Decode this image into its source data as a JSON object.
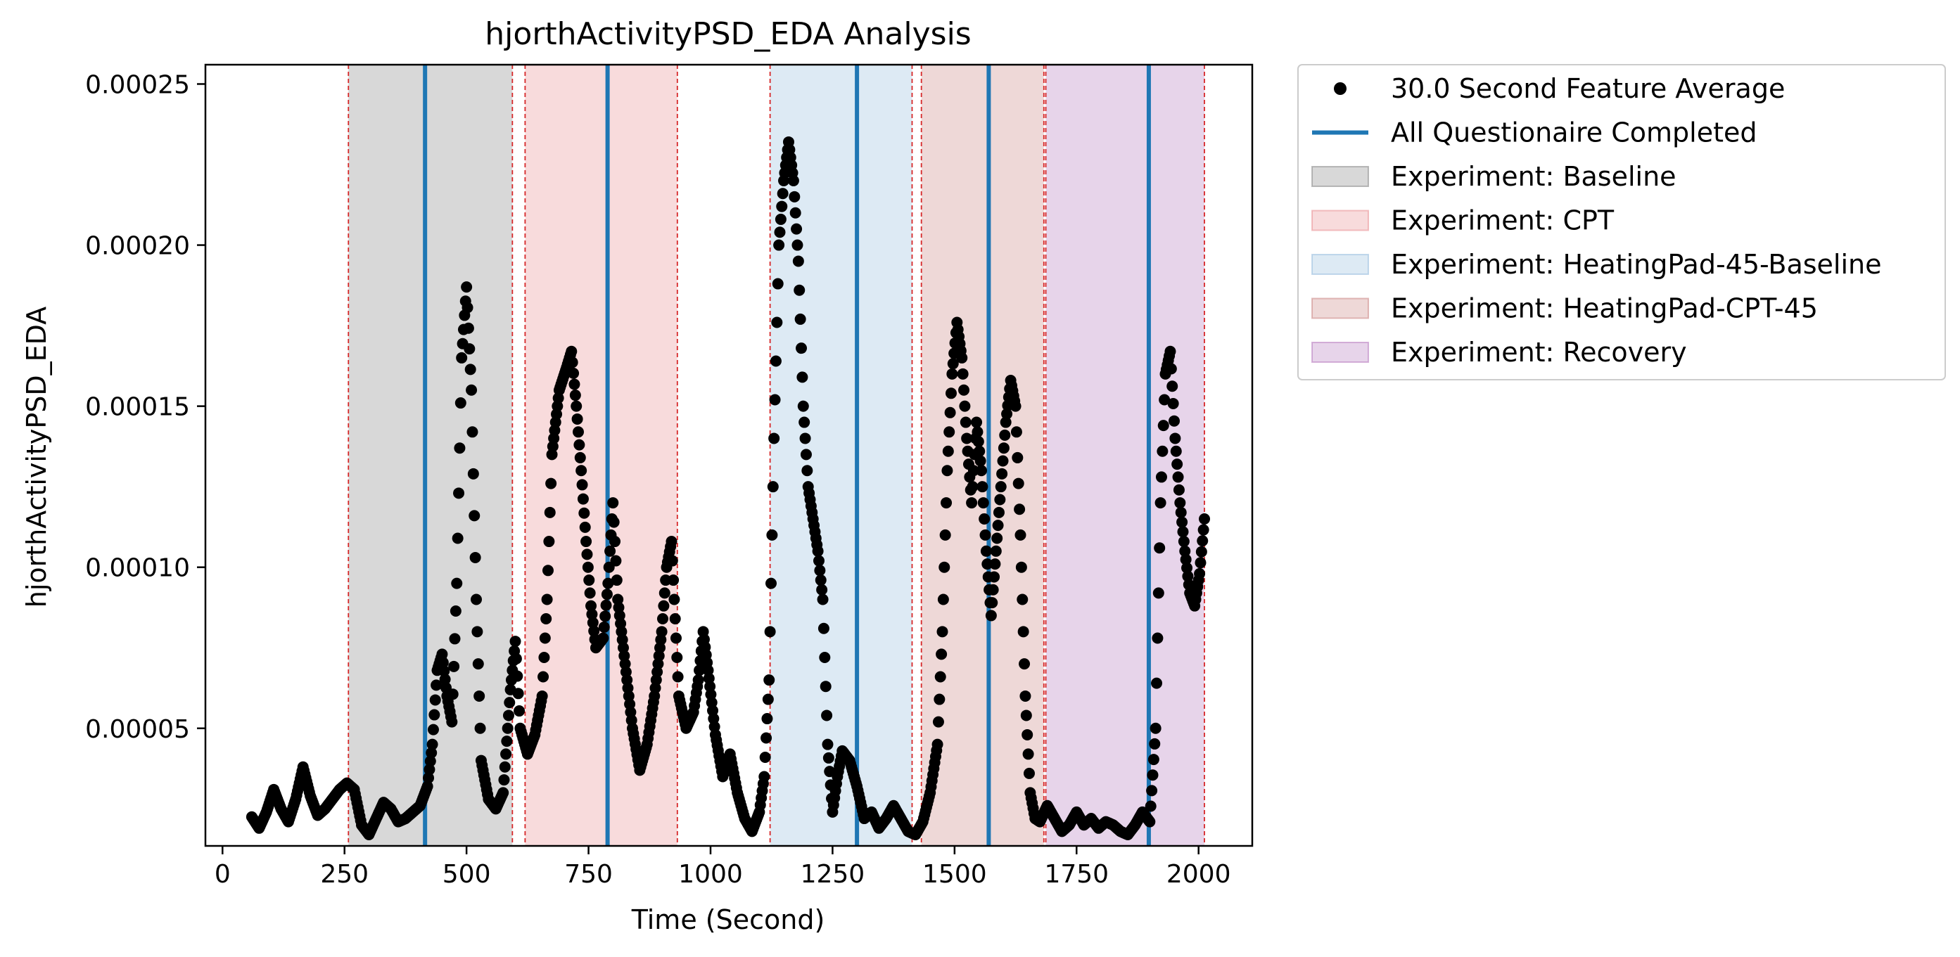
{
  "chart_data": {
    "type": "scatter",
    "title": "hjorthActivityPSD_EDA Analysis",
    "xlabel": "Time (Second)",
    "ylabel": "hjorthActivityPSD_EDA",
    "xlim": [
      -35,
      2110
    ],
    "ylim": [
      1.35e-05,
      0.000256
    ],
    "x_ticks": [
      0,
      250,
      500,
      750,
      1000,
      1250,
      1500,
      1750,
      2000
    ],
    "x_tick_labels": [
      "0",
      "250",
      "500",
      "750",
      "1000",
      "1250",
      "1500",
      "1750",
      "2000"
    ],
    "y_ticks": [
      5e-05,
      0.0001,
      0.00015,
      0.0002,
      0.00025
    ],
    "y_tick_labels": [
      "0.00005",
      "0.00010",
      "0.00015",
      "0.00020",
      "0.00025"
    ],
    "grid": false,
    "legend_position": "outside-right",
    "legend": [
      {
        "label": "30.0 Second Feature Average",
        "kind": "marker",
        "color": "#000000"
      },
      {
        "label": "All Questionaire Completed",
        "kind": "line",
        "color": "#1f77b4"
      },
      {
        "label": "Experiment: Baseline",
        "kind": "patch",
        "color": "#7f7f7f"
      },
      {
        "label": "Experiment: CPT",
        "kind": "patch",
        "color": "#e8878c"
      },
      {
        "label": "Experiment: HeatingPad-45-Baseline",
        "kind": "patch",
        "color": "#90b8dc"
      },
      {
        "label": "Experiment: HeatingPad-CPT-45",
        "kind": "patch",
        "color": "#c77e7c"
      },
      {
        "label": "Experiment: Recovery",
        "kind": "patch",
        "color": "#b16fb9"
      }
    ],
    "experiment_spans": [
      {
        "name": "Experiment: Baseline",
        "start": 258,
        "end": 594,
        "color": "#7f7f7f"
      },
      {
        "name": "Experiment: CPT",
        "start": 620,
        "end": 932,
        "color": "#e8878c"
      },
      {
        "name": "Experiment: HeatingPad-45-Baseline",
        "start": 1122,
        "end": 1413,
        "color": "#90b8dc"
      },
      {
        "name": "Experiment: HeatingPad-CPT-45",
        "start": 1432,
        "end": 1683,
        "color": "#c77e7c"
      },
      {
        "name": "Experiment: Recovery",
        "start": 1687,
        "end": 2012,
        "color": "#b16fb9"
      }
    ],
    "questionnaire_completed_x": [
      415,
      789,
      1300,
      1570,
      1898
    ],
    "series": [
      {
        "name": "30.0 Second Feature Average",
        "type": "scatter",
        "points": [
          [
            60,
            2.25e-05
          ],
          [
            75,
            1.9e-05
          ],
          [
            90,
            2.4e-05
          ],
          [
            105,
            3.1e-05
          ],
          [
            120,
            2.5e-05
          ],
          [
            135,
            2.1e-05
          ],
          [
            150,
            2.8e-05
          ],
          [
            165,
            3.8e-05
          ],
          [
            180,
            2.9e-05
          ],
          [
            195,
            2.3e-05
          ],
          [
            210,
            2.5e-05
          ],
          [
            225,
            2.8e-05
          ],
          [
            240,
            3.1e-05
          ],
          [
            255,
            3.3e-05
          ],
          [
            270,
            3.1e-05
          ],
          [
            285,
            2e-05
          ],
          [
            300,
            1.7e-05
          ],
          [
            315,
            2.2e-05
          ],
          [
            330,
            2.7e-05
          ],
          [
            345,
            2.5e-05
          ],
          [
            360,
            2.1e-05
          ],
          [
            375,
            2.2e-05
          ],
          [
            390,
            2.4e-05
          ],
          [
            405,
            2.6e-05
          ],
          [
            420,
            3.2e-05
          ],
          [
            430,
            4.5e-05
          ],
          [
            440,
            6.8e-05
          ],
          [
            450,
            7.3e-05
          ],
          [
            460,
            6e-05
          ],
          [
            470,
            5.2e-05
          ],
          [
            480,
            9.5e-05
          ],
          [
            490,
            0.000165
          ],
          [
            500,
            0.000187
          ],
          [
            510,
            0.000155
          ],
          [
            520,
            9e-05
          ],
          [
            530,
            4e-05
          ],
          [
            545,
            2.8e-05
          ],
          [
            560,
            2.5e-05
          ],
          [
            575,
            3e-05
          ],
          [
            590,
            6.2e-05
          ],
          [
            600,
            7.7e-05
          ],
          [
            610,
            5e-05
          ],
          [
            625,
            4.2e-05
          ],
          [
            640,
            4.8e-05
          ],
          [
            655,
            6e-05
          ],
          [
            665,
            9e-05
          ],
          [
            675,
            0.000135
          ],
          [
            690,
            0.000155
          ],
          [
            705,
            0.000162
          ],
          [
            715,
            0.000167
          ],
          [
            725,
            0.00015
          ],
          [
            735,
            0.00013
          ],
          [
            745,
            0.000108
          ],
          [
            755,
            8.8e-05
          ],
          [
            765,
            7.5e-05
          ],
          [
            780,
            7.8e-05
          ],
          [
            790,
            9.5e-05
          ],
          [
            800,
            0.00012
          ],
          [
            810,
            9e-05
          ],
          [
            825,
            7e-05
          ],
          [
            840,
            5e-05
          ],
          [
            855,
            3.7e-05
          ],
          [
            870,
            4.5e-05
          ],
          [
            885,
            6e-05
          ],
          [
            900,
            8e-05
          ],
          [
            910,
            0.0001
          ],
          [
            920,
            0.000108
          ],
          [
            935,
            6e-05
          ],
          [
            950,
            5e-05
          ],
          [
            965,
            5.5e-05
          ],
          [
            975,
            6.5e-05
          ],
          [
            985,
            8e-05
          ],
          [
            995,
            6.8e-05
          ],
          [
            1010,
            4.8e-05
          ],
          [
            1025,
            3.5e-05
          ],
          [
            1040,
            4.2e-05
          ],
          [
            1055,
            3e-05
          ],
          [
            1070,
            2.2e-05
          ],
          [
            1085,
            1.8e-05
          ],
          [
            1100,
            2.4e-05
          ],
          [
            1110,
            3.5e-05
          ],
          [
            1120,
            6.5e-05
          ],
          [
            1130,
            0.00014
          ],
          [
            1140,
            0.0002
          ],
          [
            1150,
            0.00022
          ],
          [
            1160,
            0.000232
          ],
          [
            1170,
            0.00022
          ],
          [
            1180,
            0.000195
          ],
          [
            1190,
            0.00015
          ],
          [
            1200,
            0.000125
          ],
          [
            1210,
            0.000115
          ],
          [
            1220,
            0.000105
          ],
          [
            1230,
            9e-05
          ],
          [
            1240,
            4.5e-05
          ],
          [
            1250,
            2.4e-05
          ],
          [
            1260,
            3.5e-05
          ],
          [
            1270,
            4.3e-05
          ],
          [
            1285,
            4e-05
          ],
          [
            1300,
            3.2e-05
          ],
          [
            1315,
            2.2e-05
          ],
          [
            1330,
            2.4e-05
          ],
          [
            1345,
            1.9e-05
          ],
          [
            1360,
            2.2e-05
          ],
          [
            1375,
            2.6e-05
          ],
          [
            1390,
            2.2e-05
          ],
          [
            1405,
            1.8e-05
          ],
          [
            1420,
            1.7e-05
          ],
          [
            1435,
            2.1e-05
          ],
          [
            1450,
            3e-05
          ],
          [
            1465,
            4.5e-05
          ],
          [
            1475,
            8e-05
          ],
          [
            1485,
            0.00013
          ],
          [
            1495,
            0.00016
          ],
          [
            1505,
            0.000176
          ],
          [
            1515,
            0.000165
          ],
          [
            1525,
            0.00014
          ],
          [
            1535,
            0.00012
          ],
          [
            1545,
            0.000145
          ],
          [
            1555,
            0.00013
          ],
          [
            1565,
            0.000105
          ],
          [
            1575,
            8.5e-05
          ],
          [
            1585,
            0.000105
          ],
          [
            1595,
            0.000125
          ],
          [
            1605,
            0.000145
          ],
          [
            1615,
            0.000158
          ],
          [
            1625,
            0.00015
          ],
          [
            1635,
            0.00011
          ],
          [
            1645,
            6e-05
          ],
          [
            1655,
            3e-05
          ],
          [
            1665,
            2.2e-05
          ],
          [
            1675,
            2.1e-05
          ],
          [
            1690,
            2.6e-05
          ],
          [
            1705,
            2.2e-05
          ],
          [
            1720,
            1.8e-05
          ],
          [
            1735,
            2e-05
          ],
          [
            1750,
            2.4e-05
          ],
          [
            1765,
            2e-05
          ],
          [
            1780,
            2.2e-05
          ],
          [
            1795,
            1.9e-05
          ],
          [
            1810,
            2.1e-05
          ],
          [
            1825,
            2e-05
          ],
          [
            1840,
            1.8e-05
          ],
          [
            1855,
            1.7e-05
          ],
          [
            1870,
            2e-05
          ],
          [
            1885,
            2.4e-05
          ],
          [
            1900,
            2.1e-05
          ],
          [
            1912,
            5e-05
          ],
          [
            1922,
            0.00012
          ],
          [
            1932,
            0.00016
          ],
          [
            1942,
            0.000167
          ],
          [
            1952,
            0.00014
          ],
          [
            1962,
            0.00012
          ],
          [
            1972,
            0.000105
          ],
          [
            1982,
            9.2e-05
          ],
          [
            1992,
            8.8e-05
          ],
          [
            2002,
            9.8e-05
          ],
          [
            2012,
            0.000115
          ]
        ]
      }
    ]
  }
}
